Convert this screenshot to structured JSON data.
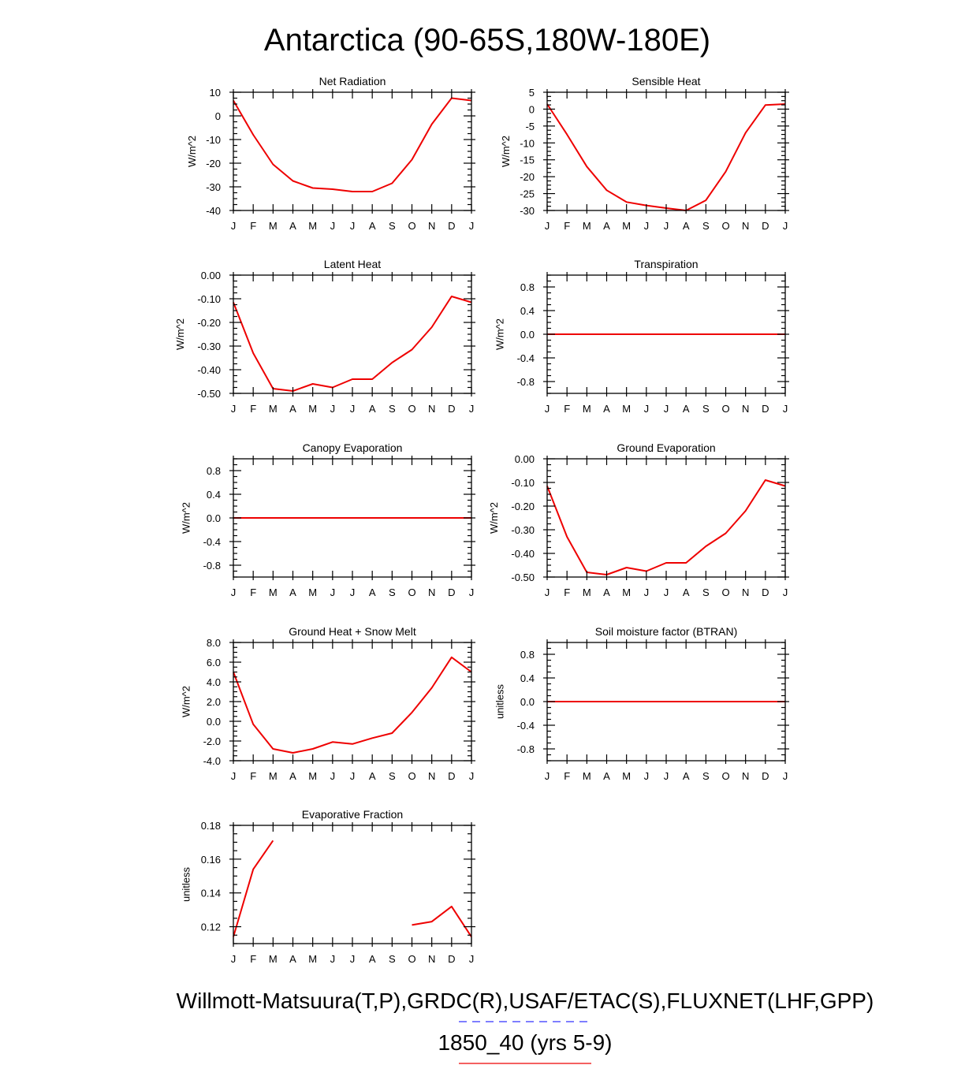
{
  "title": "Antarctica (90-65S,180W-180E)",
  "footer": {
    "line1": "Willmott-Matsuura(T,P),GRDC(R),USAF/ETAC(S),FLUXNET(LHF,GPP)",
    "line2": "1850_40 (yrs 5-9)",
    "line1_underline_color": "#3333ff",
    "line2_underline_color": "#ee0000"
  },
  "colors": {
    "series": "#ee0000",
    "axis": "#000000"
  },
  "chart_data": [
    {
      "type": "line",
      "title": "Net Radiation",
      "ylabel": "W/m^2",
      "categories": [
        "J",
        "F",
        "M",
        "A",
        "M",
        "J",
        "J",
        "A",
        "S",
        "O",
        "N",
        "D",
        "J"
      ],
      "ylim": [
        -40,
        10
      ],
      "yticks": [
        10,
        0,
        -10,
        -20,
        -30,
        -40
      ],
      "yticklabels": [
        "10",
        "0",
        "-10",
        "-20",
        "-30",
        "-40"
      ],
      "series": [
        {
          "values": [
            6.5,
            -8,
            -20.5,
            -27.5,
            -30.5,
            -31,
            -32,
            -32,
            -28.5,
            -18.5,
            -3.5,
            7.5,
            6.5
          ]
        }
      ]
    },
    {
      "type": "line",
      "title": "Sensible Heat",
      "ylabel": "W/m^2",
      "categories": [
        "J",
        "F",
        "M",
        "A",
        "M",
        "J",
        "J",
        "A",
        "S",
        "O",
        "N",
        "D",
        "J"
      ],
      "ylim": [
        -30,
        5
      ],
      "yticks": [
        5,
        0,
        -5,
        -10,
        -15,
        -20,
        -25,
        -30
      ],
      "yticklabels": [
        "5",
        "0",
        "-5",
        "-10",
        "-15",
        "-20",
        "-25",
        "-30"
      ],
      "series": [
        {
          "values": [
            1.5,
            -7.5,
            -17,
            -24,
            -27.5,
            -28.5,
            -29.3,
            -30,
            -27,
            -18.5,
            -7,
            1.2,
            1.5
          ]
        }
      ]
    },
    {
      "type": "line",
      "title": "Latent Heat",
      "ylabel": "W/m^2",
      "categories": [
        "J",
        "F",
        "M",
        "A",
        "M",
        "J",
        "J",
        "A",
        "S",
        "O",
        "N",
        "D",
        "J"
      ],
      "ylim": [
        -0.5,
        0
      ],
      "yticks": [
        0,
        -0.1,
        -0.2,
        -0.3,
        -0.4,
        -0.5
      ],
      "yticklabels": [
        "0.00",
        "-0.10",
        "-0.20",
        "-0.30",
        "-0.40",
        "-0.50"
      ],
      "series": [
        {
          "values": [
            -0.115,
            -0.33,
            -0.48,
            -0.49,
            -0.46,
            -0.475,
            -0.44,
            -0.44,
            -0.37,
            -0.315,
            -0.22,
            -0.09,
            -0.115
          ]
        }
      ]
    },
    {
      "type": "line",
      "title": "Transpiration",
      "ylabel": "W/m^2",
      "categories": [
        "J",
        "F",
        "M",
        "A",
        "M",
        "J",
        "J",
        "A",
        "S",
        "O",
        "N",
        "D",
        "J"
      ],
      "ylim": [
        -1,
        1
      ],
      "yticks": [
        0.8,
        0.4,
        0,
        -0.4,
        -0.8
      ],
      "yticklabels": [
        "0.8",
        "0.4",
        "0.0",
        "-0.4",
        "-0.8"
      ],
      "series": [
        {
          "values": [
            0,
            0,
            0,
            0,
            0,
            0,
            0,
            0,
            0,
            0,
            0,
            0,
            0
          ]
        }
      ]
    },
    {
      "type": "line",
      "title": "Canopy Evaporation",
      "ylabel": "W/m^2",
      "categories": [
        "J",
        "F",
        "M",
        "A",
        "M",
        "J",
        "J",
        "A",
        "S",
        "O",
        "N",
        "D",
        "J"
      ],
      "ylim": [
        -1,
        1
      ],
      "yticks": [
        0.8,
        0.4,
        0,
        -0.4,
        -0.8
      ],
      "yticklabels": [
        "0.8",
        "0.4",
        "0.0",
        "-0.4",
        "-0.8"
      ],
      "series": [
        {
          "values": [
            0,
            0,
            0,
            0,
            0,
            0,
            0,
            0,
            0,
            0,
            0,
            0,
            0
          ]
        }
      ]
    },
    {
      "type": "line",
      "title": "Ground Evaporation",
      "ylabel": "W/m^2",
      "categories": [
        "J",
        "F",
        "M",
        "A",
        "M",
        "J",
        "J",
        "A",
        "S",
        "O",
        "N",
        "D",
        "J"
      ],
      "ylim": [
        -0.5,
        0
      ],
      "yticks": [
        0,
        -0.1,
        -0.2,
        -0.3,
        -0.4,
        -0.5
      ],
      "yticklabels": [
        "0.00",
        "-0.10",
        "-0.20",
        "-0.30",
        "-0.40",
        "-0.50"
      ],
      "series": [
        {
          "values": [
            -0.115,
            -0.33,
            -0.48,
            -0.49,
            -0.46,
            -0.475,
            -0.44,
            -0.44,
            -0.37,
            -0.315,
            -0.22,
            -0.09,
            -0.115
          ]
        }
      ]
    },
    {
      "type": "line",
      "title": "Ground Heat + Snow Melt",
      "ylabel": "W/m^2",
      "categories": [
        "J",
        "F",
        "M",
        "A",
        "M",
        "J",
        "J",
        "A",
        "S",
        "O",
        "N",
        "D",
        "J"
      ],
      "ylim": [
        -4,
        8
      ],
      "yticks": [
        8,
        6,
        4,
        2,
        0,
        -2,
        -4
      ],
      "yticklabels": [
        "8.0",
        "6.0",
        "4.0",
        "2.0",
        "0.0",
        "-2.0",
        "-4.0"
      ],
      "series": [
        {
          "values": [
            5,
            -0.3,
            -2.8,
            -3.2,
            -2.8,
            -2.1,
            -2.3,
            -1.7,
            -1.2,
            0.9,
            3.4,
            6.5,
            5
          ]
        }
      ]
    },
    {
      "type": "line",
      "title": "Soil moisture factor (BTRAN)",
      "ylabel": "unitless",
      "categories": [
        "J",
        "F",
        "M",
        "A",
        "M",
        "J",
        "J",
        "A",
        "S",
        "O",
        "N",
        "D",
        "J"
      ],
      "ylim": [
        -1,
        1
      ],
      "yticks": [
        0.8,
        0.4,
        0,
        -0.4,
        -0.8
      ],
      "yticklabels": [
        "0.8",
        "0.4",
        "0.0",
        "-0.4",
        "-0.8"
      ],
      "series": [
        {
          "values": [
            0,
            0,
            0,
            0,
            0,
            0,
            0,
            0,
            0,
            0,
            0,
            0,
            0
          ]
        }
      ]
    },
    {
      "type": "line",
      "title": "Evaporative Fraction",
      "ylabel": "unitless",
      "categories": [
        "J",
        "F",
        "M",
        "A",
        "M",
        "J",
        "J",
        "A",
        "S",
        "O",
        "N",
        "D",
        "J"
      ],
      "ylim": [
        0.11,
        0.18
      ],
      "yticks": [
        0.18,
        0.16,
        0.14,
        0.12
      ],
      "yticklabels": [
        "0.18",
        "0.16",
        "0.14",
        "0.12"
      ],
      "series": [
        {
          "values": [
            0.114,
            0.154,
            0.171,
            null,
            null,
            null,
            null,
            null,
            null,
            0.121,
            0.123,
            0.132,
            0.114
          ]
        }
      ]
    }
  ]
}
